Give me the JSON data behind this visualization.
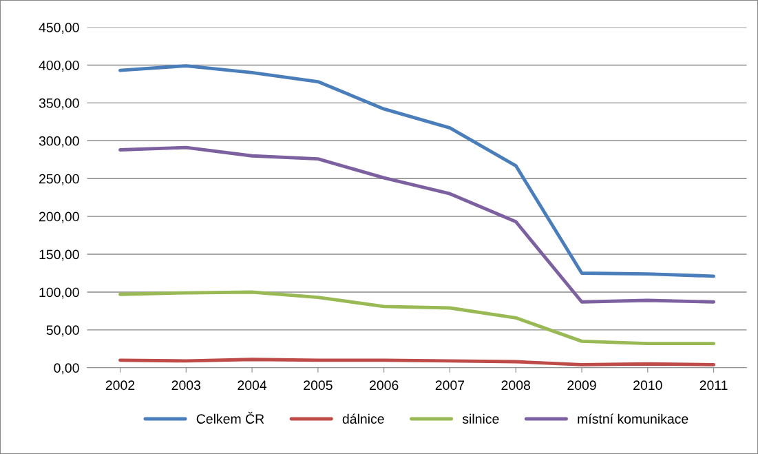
{
  "chart_data": {
    "type": "line",
    "categories": [
      "2002",
      "2003",
      "2004",
      "2005",
      "2006",
      "2007",
      "2008",
      "2009",
      "2010",
      "2011"
    ],
    "series": [
      {
        "name": "Celkem ČR",
        "color": "#4a7ebb",
        "values": [
          393,
          399,
          390,
          378,
          342,
          317,
          267,
          125,
          124,
          121
        ]
      },
      {
        "name": "dálnice",
        "color": "#be4b48",
        "values": [
          10,
          9,
          11,
          10,
          10,
          9,
          8,
          4,
          5,
          4
        ]
      },
      {
        "name": "silnice",
        "color": "#98b954",
        "values": [
          97,
          99,
          100,
          93,
          81,
          79,
          66,
          35,
          32,
          32
        ]
      },
      {
        "name": "místní komunikace",
        "color": "#7d60a0",
        "values": [
          288,
          291,
          280,
          276,
          251,
          230,
          193,
          87,
          89,
          87
        ]
      }
    ],
    "ylim": [
      0,
      450
    ],
    "yticks": [
      {
        "value": 0,
        "label": "0,00"
      },
      {
        "value": 50,
        "label": "50,00"
      },
      {
        "value": 100,
        "label": "100,00"
      },
      {
        "value": 150,
        "label": "150,00"
      },
      {
        "value": 200,
        "label": "200,00"
      },
      {
        "value": 250,
        "label": "250,00"
      },
      {
        "value": 300,
        "label": "300,00"
      },
      {
        "value": 350,
        "label": "350,00"
      },
      {
        "value": 400,
        "label": "400,00"
      },
      {
        "value": 450,
        "label": "450,00"
      }
    ],
    "grid": "y",
    "legend": "bottom",
    "marker": "none",
    "line_style": "solid"
  }
}
